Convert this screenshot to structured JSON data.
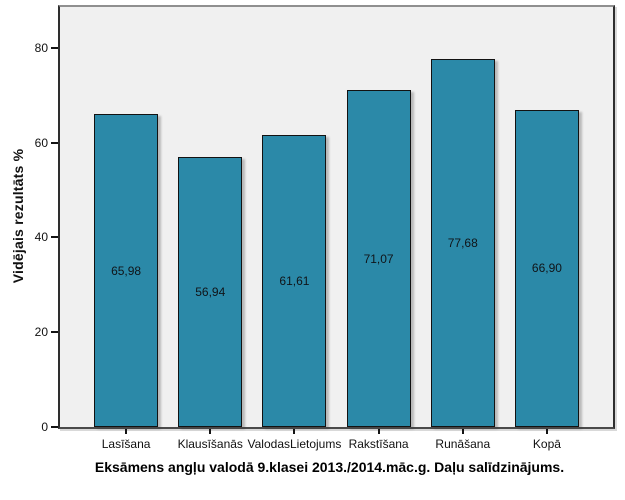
{
  "chart_data": {
    "type": "bar",
    "categories": [
      "Lasīšana",
      "Klausīšanās",
      "ValodasLietojums",
      "Rakstīšana",
      "Runāšana",
      "Kopā"
    ],
    "values": [
      65.98,
      56.94,
      61.61,
      71.07,
      77.68,
      66.9
    ],
    "value_labels": [
      "65,98",
      "56,94",
      "61,61",
      "71,07",
      "77,68",
      "66,90"
    ],
    "title": "Eksāmens angļu valodā 9.klasei 2013./2014.māc.g. Daļu salīdzinājums.",
    "xlabel": "",
    "ylabel": "Vidējais rezultāts %",
    "ylim": [
      0,
      88.6
    ],
    "yticks": [
      0,
      20,
      40,
      60,
      80
    ],
    "grid": false,
    "legend": "none",
    "bar_color": "#2B89A8",
    "bar_border_color": "#121212",
    "plot_bg_color": "#F0F0F0",
    "text_color": "#111111"
  }
}
